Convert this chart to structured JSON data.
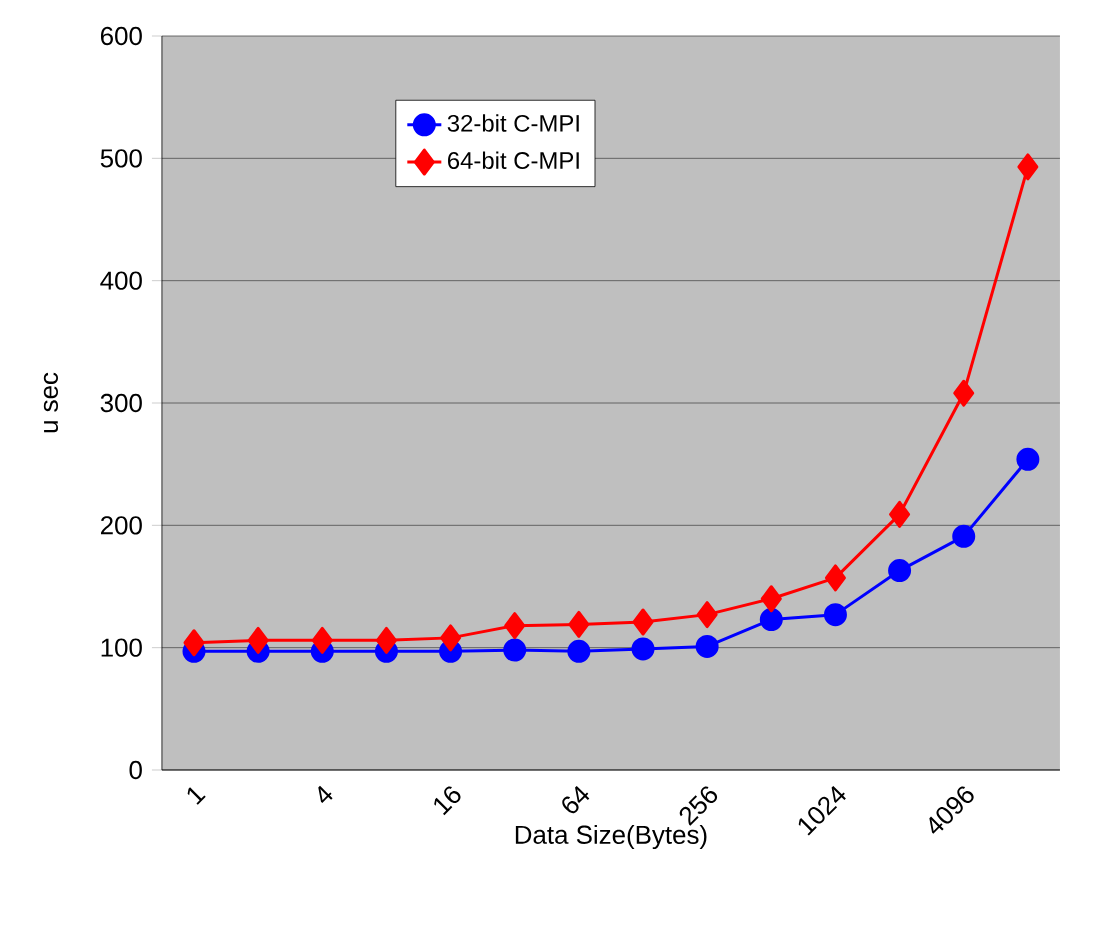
{
  "chart_data": {
    "type": "line",
    "xlabel": "Data Size(Bytes)",
    "ylabel": "u sec",
    "categories": [
      "1",
      null,
      "4",
      null,
      "16",
      null,
      "64",
      null,
      "256",
      null,
      "1024",
      null,
      "4096",
      null
    ],
    "series": [
      {
        "name": "32-bit C-MPI",
        "color": "#0000ff",
        "marker": "circle",
        "values": [
          97,
          97,
          97,
          97,
          97,
          98,
          97,
          99,
          101,
          123,
          127,
          163,
          191,
          254
        ]
      },
      {
        "name": "64-bit C-MPI",
        "color": "#ff0000",
        "marker": "diamond",
        "values": [
          104,
          106,
          106,
          106,
          108,
          118,
          119,
          121,
          127,
          140,
          157,
          209,
          308,
          493
        ]
      }
    ],
    "ylim": [
      0,
      600
    ],
    "yticks": [
      0,
      100,
      200,
      300,
      400,
      500,
      600
    ],
    "grid": "y",
    "legend": "top",
    "line_style": "solid"
  }
}
